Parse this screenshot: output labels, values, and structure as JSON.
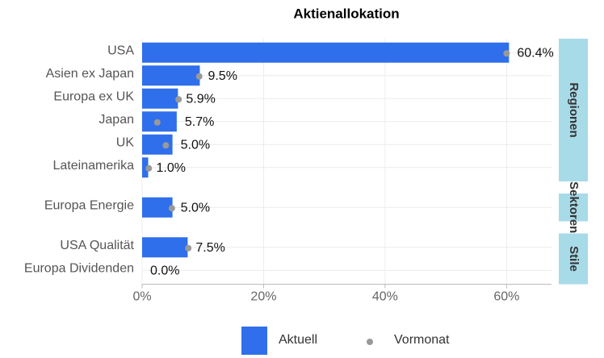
{
  "chart_data": {
    "type": "bar",
    "orientation": "horizontal",
    "title": "Aktienallokation",
    "facets": [
      {
        "label": "Regionen",
        "categories": [
          "USA",
          "Asien ex Japan",
          "Europa ex UK",
          "Japan",
          "UK",
          "Lateinamerika"
        ]
      },
      {
        "label": "Sektoren",
        "categories": [
          "Europa Energie"
        ]
      },
      {
        "label": "Stile",
        "categories": [
          "USA Qualität",
          "Europa Dividenden"
        ]
      }
    ],
    "series": [
      {
        "name": "Aktuell",
        "color": "#2f6fec",
        "mark": "bar",
        "values": [
          60.4,
          9.5,
          5.9,
          5.7,
          5.0,
          1.0,
          5.0,
          7.5,
          0.0
        ],
        "value_labels": [
          "60.4%",
          "9.5%",
          "5.9%",
          "5.7%",
          "5.0%",
          "1.0%",
          "5.0%",
          "7.5%",
          "0.0%"
        ]
      },
      {
        "name": "Vormonat",
        "color": "#999999",
        "mark": "dot",
        "values": [
          60.0,
          9.4,
          6.0,
          2.5,
          3.9,
          1.1,
          4.9,
          7.6,
          null
        ]
      }
    ],
    "xlim": [
      0,
      67.4
    ],
    "xticks": [
      {
        "value": 0,
        "label": "0%"
      },
      {
        "value": 20,
        "label": "20%"
      },
      {
        "value": 40,
        "label": "40%"
      },
      {
        "value": 60,
        "label": "60%"
      }
    ],
    "grid": true
  }
}
